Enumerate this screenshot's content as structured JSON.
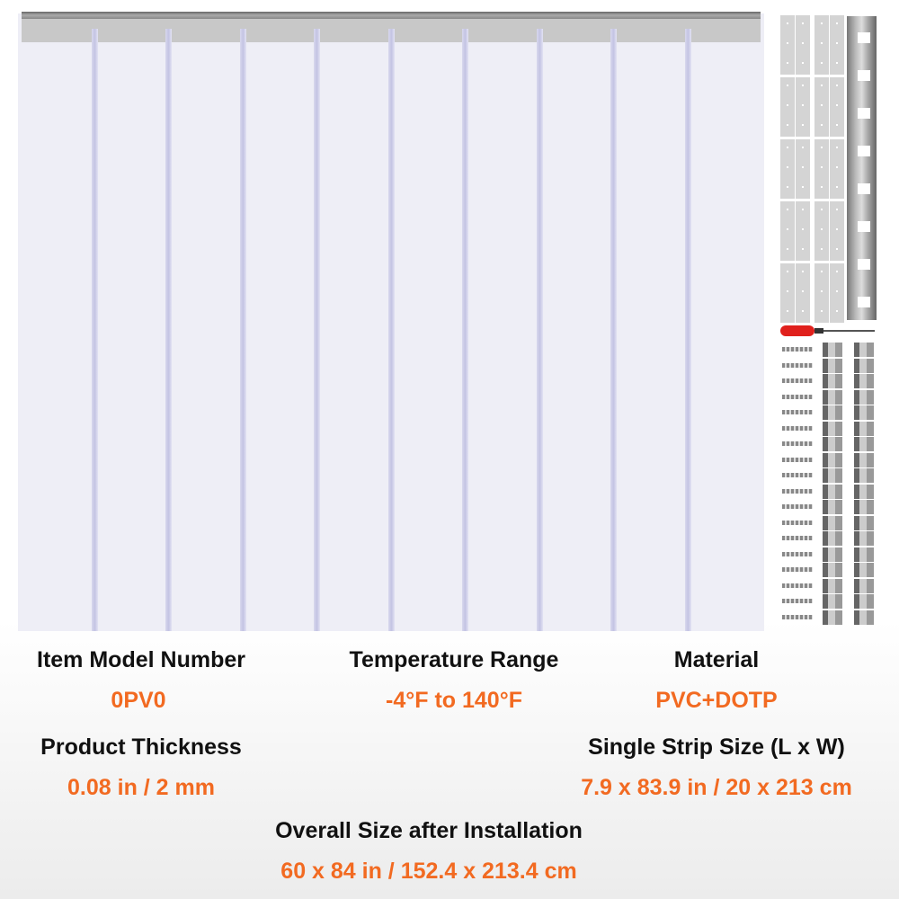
{
  "colors": {
    "accent": "#f26a21",
    "label": "#111111"
  },
  "specs": {
    "model": {
      "label": "Item Model Number",
      "value": "0PV0"
    },
    "temperature": {
      "label": "Temperature Range",
      "value": "-4°F to 140°F"
    },
    "material": {
      "label": "Material",
      "value": "PVC+DOTP"
    },
    "thickness": {
      "label": "Product Thickness",
      "value": "0.08 in / 2 mm"
    },
    "strip_size": {
      "label": "Single Strip Size (L x W)",
      "value": "7.9 x 83.9 in / 20 x 213 cm"
    },
    "overall_size": {
      "label": "Overall Size after Installation",
      "value": "60 x 84 in / 152.4 x 213.4 cm"
    }
  }
}
